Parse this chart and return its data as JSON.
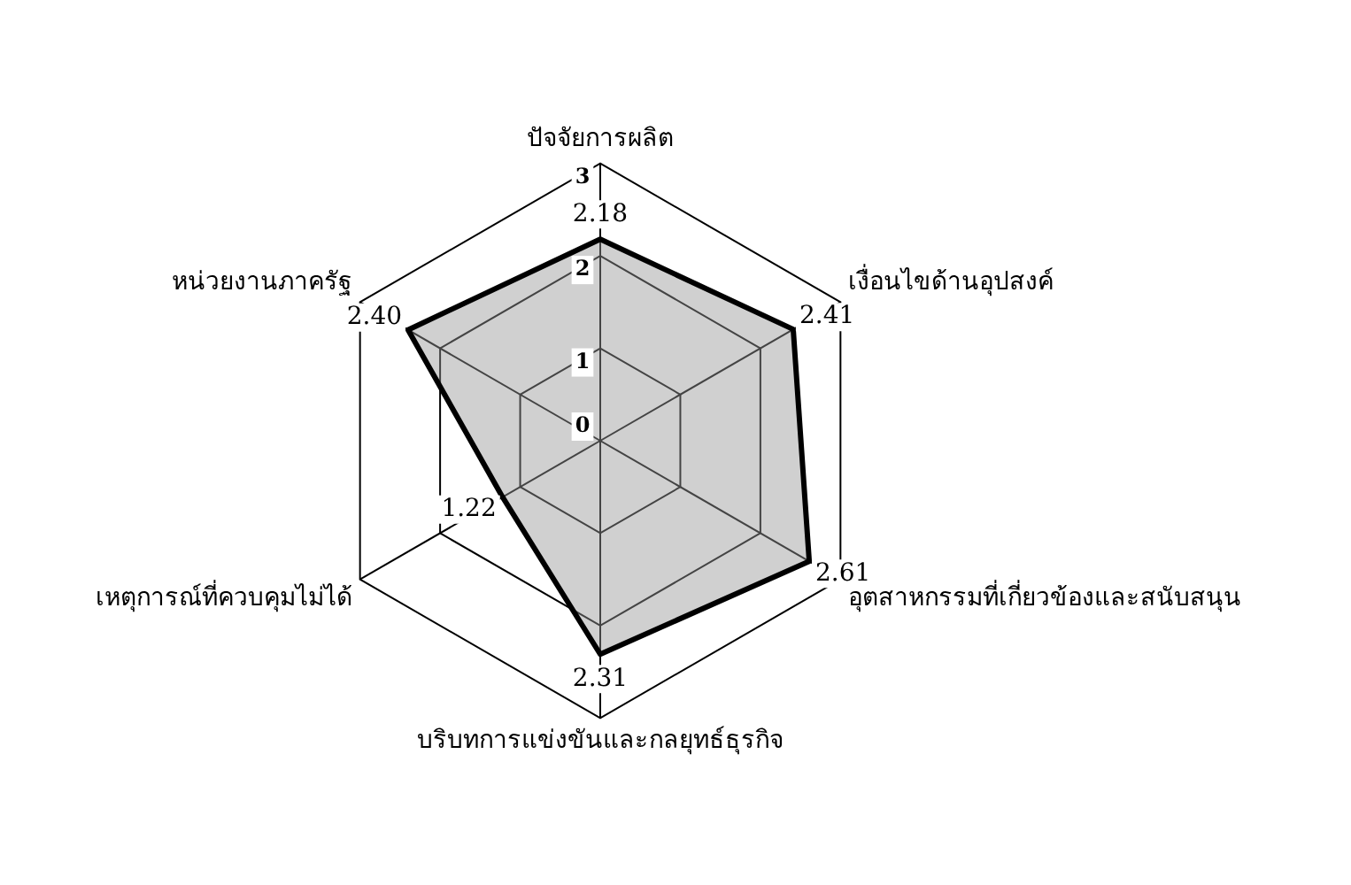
{
  "chart_data": {
    "type": "radar",
    "categories": [
      "ปัจจัยการผลิต",
      "เงื่อนไขด้านอุปสงค์",
      "อุตสาหกรรมที่เกี่ยวข้องและสนับสนุน",
      "บริบทการแข่งขันและกลยุทธ์ธุรกิจ",
      "เหตุการณ์ที่ควบคุมไม่ได้",
      "หน่วยงานภาครัฐ"
    ],
    "series": [
      {
        "color": "#000000",
        "values": [
          2.18,
          2.41,
          2.61,
          2.31,
          1.22,
          2.4
        ],
        "value_labels": [
          "2.18",
          "2.41",
          "2.61",
          "2.31",
          "1.22",
          "2.40"
        ]
      }
    ],
    "ylim": [
      0,
      3
    ],
    "yticks": [
      0,
      1,
      2,
      3
    ],
    "grid": true,
    "legend": false,
    "marker": "none"
  }
}
